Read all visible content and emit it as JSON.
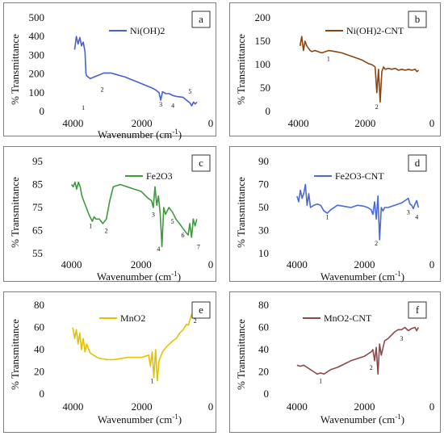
{
  "chart_data": [
    {
      "panel": "a",
      "type": "line",
      "series": [
        {
          "name": "Ni(OH)2",
          "color": "#4a5fcf",
          "x": [
            3950,
            3900,
            3850,
            3800,
            3750,
            3700,
            3650,
            3620,
            3600,
            3500,
            3300,
            3100,
            2900,
            2700,
            2500,
            2300,
            2100,
            1900,
            1700,
            1600,
            1500,
            1450,
            1400,
            1300,
            1200,
            1100,
            1000,
            900,
            800,
            700,
            600,
            550,
            500,
            450,
            400
          ],
          "y": [
            330,
            400,
            360,
            395,
            350,
            370,
            320,
            200,
            190,
            175,
            190,
            205,
            205,
            195,
            185,
            170,
            155,
            140,
            125,
            115,
            100,
            60,
            105,
            95,
            95,
            85,
            80,
            78,
            75,
            60,
            45,
            30,
            50,
            40,
            50
          ]
        }
      ],
      "yticks": [
        0,
        100,
        200,
        300,
        400,
        500
      ],
      "ylim": [
        0,
        500
      ],
      "xticks": [
        4000,
        2000,
        0
      ],
      "xlim": [
        4500,
        0
      ],
      "xlabel": "Wavenumber (cm-1)",
      "ylabel": "% Transmittance",
      "annotations": [
        {
          "text": "1",
          "x": 3700,
          "y": 8
        },
        {
          "text": "2",
          "x": 3150,
          "y": 105
        },
        {
          "text": "3",
          "x": 1450,
          "y": 25
        },
        {
          "text": "4",
          "x": 1100,
          "y": 20
        },
        {
          "text": "5",
          "x": 600,
          "y": 95
        }
      ]
    },
    {
      "panel": "b",
      "type": "line",
      "series": [
        {
          "name": "Ni(OH)2-CNT",
          "color": "#8b4513",
          "x": [
            3950,
            3900,
            3850,
            3800,
            3750,
            3700,
            3650,
            3600,
            3500,
            3300,
            3100,
            2900,
            2700,
            2500,
            2300,
            2100,
            1900,
            1800,
            1700,
            1650,
            1600,
            1550,
            1500,
            1450,
            1400,
            1300,
            1200,
            1100,
            1000,
            900,
            800,
            700,
            600,
            500,
            450,
            400
          ],
          "y": [
            140,
            160,
            130,
            150,
            140,
            135,
            130,
            128,
            130,
            125,
            130,
            128,
            125,
            120,
            115,
            110,
            102,
            100,
            95,
            40,
            90,
            20,
            85,
            95,
            90,
            92,
            90,
            92,
            88,
            90,
            88,
            90,
            88,
            90,
            85,
            88
          ]
        }
      ],
      "yticks": [
        0,
        50,
        100,
        150,
        200
      ],
      "ylim": [
        0,
        200
      ],
      "xticks": [
        4000,
        2000,
        0
      ],
      "xlim": [
        4500,
        0
      ],
      "xlabel": "",
      "ylabel": "% Transmittance",
      "annotations": [
        {
          "text": "1",
          "x": 3100,
          "y": 108
        },
        {
          "text": "2",
          "x": 1650,
          "y": 5
        }
      ]
    },
    {
      "panel": "c",
      "type": "line",
      "series": [
        {
          "name": "Fe2O3",
          "color": "#3d9a3d",
          "x": [
            4000,
            3950,
            3900,
            3850,
            3800,
            3750,
            3700,
            3650,
            3600,
            3500,
            3400,
            3350,
            3300,
            3200,
            3100,
            3000,
            2900,
            2800,
            2600,
            2400,
            2200,
            2000,
            1800,
            1700,
            1650,
            1600,
            1550,
            1500,
            1450,
            1400,
            1350,
            1300,
            1200,
            1100,
            1000,
            900,
            800,
            700,
            650,
            600,
            550,
            500,
            450,
            400
          ],
          "y": [
            85,
            84,
            86,
            83,
            86,
            84,
            80,
            78,
            76,
            72,
            69,
            71,
            70,
            70,
            68,
            70,
            78,
            84,
            85,
            84,
            83,
            82,
            79,
            78,
            75,
            84,
            76,
            80,
            72,
            58,
            75,
            72,
            75,
            73,
            70,
            68,
            66,
            64,
            63,
            68,
            62,
            70,
            67,
            70
          ]
        }
      ],
      "yticks": [
        55,
        65,
        75,
        85,
        95
      ],
      "ylim": [
        55,
        95
      ],
      "xticks": [
        4000,
        2000,
        0
      ],
      "xlim": [
        4500,
        0
      ],
      "xlabel": "Wavenumber (cm-1)",
      "ylabel": "% Transmittance",
      "annotations": [
        {
          "text": "1",
          "x": 3450,
          "y": 66
        },
        {
          "text": "2",
          "x": 3000,
          "y": 64
        },
        {
          "text": "3",
          "x": 1650,
          "y": 71
        },
        {
          "text": "4",
          "x": 1500,
          "y": 56
        },
        {
          "text": "5",
          "x": 1100,
          "y": 68
        },
        {
          "text": "6",
          "x": 800,
          "y": 62
        },
        {
          "text": "7",
          "x": 350,
          "y": 57
        }
      ]
    },
    {
      "panel": "d",
      "type": "line",
      "series": [
        {
          "name": "Fe2O3-CNT",
          "color": "#4a6ad6",
          "x": [
            4000,
            3950,
            3900,
            3850,
            3800,
            3750,
            3700,
            3650,
            3600,
            3500,
            3400,
            3300,
            3200,
            3100,
            3000,
            2800,
            2600,
            2400,
            2200,
            2000,
            1900,
            1800,
            1750,
            1700,
            1650,
            1600,
            1550,
            1500,
            1450,
            1400,
            1300,
            1200,
            1100,
            1000,
            900,
            800,
            700,
            650,
            600,
            550,
            500,
            450,
            400
          ],
          "y": [
            60,
            55,
            65,
            58,
            62,
            70,
            52,
            62,
            50,
            52,
            53,
            52,
            47,
            45,
            48,
            52,
            51,
            50,
            52,
            51,
            50,
            48,
            44,
            55,
            40,
            60,
            22,
            50,
            47,
            50,
            50,
            51,
            52,
            53,
            54,
            56,
            58,
            53,
            52,
            49,
            53,
            56,
            50
          ]
        }
      ],
      "yticks": [
        10,
        30,
        50,
        70,
        90
      ],
      "ylim": [
        10,
        90
      ],
      "xticks": [
        4000,
        2000,
        0
      ],
      "xlim": [
        4500,
        0
      ],
      "xlabel": "Wavenumber (cm-1)",
      "ylabel": "% Transmittance",
      "annotations": [
        {
          "text": "1",
          "x": 3100,
          "y": 40
        },
        {
          "text": "2",
          "x": 1650,
          "y": 17
        },
        {
          "text": "3",
          "x": 700,
          "y": 44
        },
        {
          "text": "4",
          "x": 450,
          "y": 40
        }
      ]
    },
    {
      "panel": "e",
      "type": "line",
      "series": [
        {
          "name": "MnO2",
          "color": "#e5c100",
          "x": [
            4000,
            3950,
            3900,
            3850,
            3800,
            3750,
            3700,
            3650,
            3600,
            3500,
            3400,
            3300,
            3200,
            3000,
            2800,
            2600,
            2400,
            2200,
            2000,
            1900,
            1800,
            1750,
            1700,
            1650,
            1600,
            1550,
            1500,
            1400,
            1300,
            1200,
            1100,
            1000,
            900,
            800,
            700,
            650,
            600,
            550,
            500,
            450,
            400
          ],
          "y": [
            60,
            50,
            58,
            45,
            55,
            40,
            50,
            38,
            45,
            37,
            35,
            33,
            32,
            31,
            31,
            32,
            33,
            33,
            33,
            34,
            35,
            25,
            38,
            15,
            40,
            12,
            30,
            38,
            42,
            45,
            48,
            50,
            55,
            58,
            63,
            62,
            67,
            72,
            70,
            75,
            70
          ]
        }
      ],
      "yticks": [
        0,
        20,
        40,
        60,
        80
      ],
      "ylim": [
        0,
        80
      ],
      "xticks": [
        4000,
        2000,
        0
      ],
      "xlim": [
        4500,
        0
      ],
      "xlabel": "Wavenumber (cm-1)",
      "ylabel": "% Transmittance",
      "annotations": [
        {
          "text": "1",
          "x": 1700,
          "y": 10
        },
        {
          "text": "2",
          "x": 450,
          "y": 64
        }
      ]
    },
    {
      "panel": "f",
      "type": "line",
      "series": [
        {
          "name": "MnO2-CNT",
          "color": "#8b4a4a",
          "x": [
            4000,
            3900,
            3800,
            3700,
            3600,
            3500,
            3400,
            3300,
            3200,
            3100,
            3000,
            2800,
            2600,
            2400,
            2200,
            2000,
            1900,
            1800,
            1750,
            1700,
            1650,
            1600,
            1550,
            1500,
            1400,
            1300,
            1200,
            1100,
            1000,
            900,
            800,
            700,
            600,
            500,
            450,
            400
          ],
          "y": [
            26,
            25,
            26,
            24,
            22,
            20,
            18,
            19,
            18,
            20,
            22,
            24,
            27,
            30,
            32,
            34,
            36,
            38,
            40,
            30,
            42,
            18,
            45,
            35,
            48,
            50,
            53,
            56,
            58,
            58,
            60,
            57,
            59,
            60,
            57,
            60
          ]
        }
      ],
      "yticks": [
        0,
        20,
        40,
        60,
        80
      ],
      "ylim": [
        0,
        80
      ],
      "xticks": [
        4000,
        2000,
        0
      ],
      "xlim": [
        4500,
        0
      ],
      "xlabel": "Wavenumber (cm-1)",
      "ylabel": "% Transmittance",
      "annotations": [
        {
          "text": "1",
          "x": 3300,
          "y": 10
        },
        {
          "text": "2",
          "x": 1800,
          "y": 22
        },
        {
          "text": "3",
          "x": 900,
          "y": 48
        }
      ]
    }
  ],
  "panels": {
    "a": {
      "letter": "a"
    },
    "b": {
      "letter": "b"
    },
    "c": {
      "letter": "c"
    },
    "d": {
      "letter": "d"
    },
    "e": {
      "letter": "e"
    },
    "f": {
      "letter": "f"
    }
  }
}
